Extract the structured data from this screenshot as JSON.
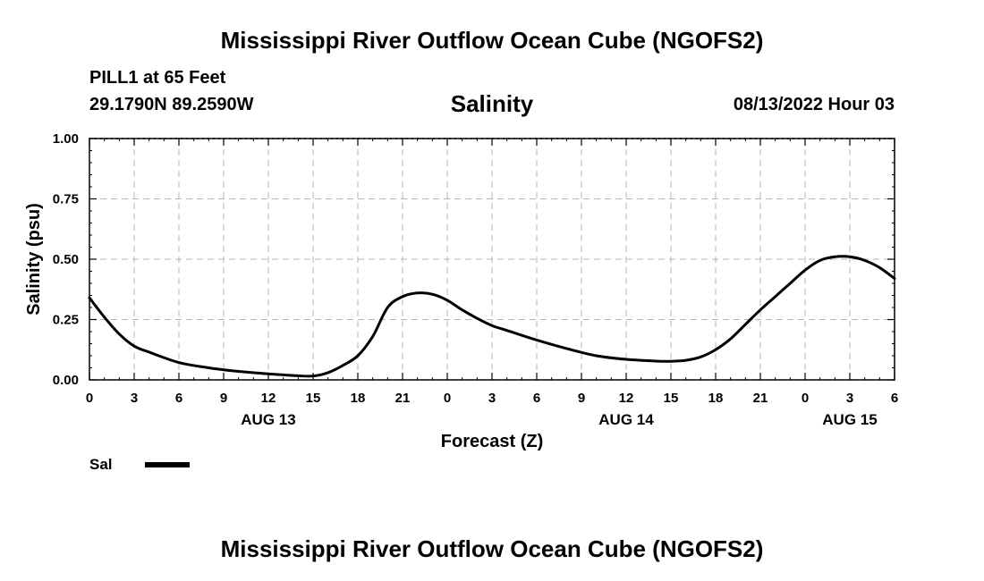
{
  "header": {
    "title": "Mississippi River Outflow Ocean Cube (NGOFS2)",
    "station_name": "PILL1 at 65 Feet",
    "station_coords": "29.1790N  89.2590W",
    "run_time": "08/13/2022 Hour 03"
  },
  "footer": {
    "title": "Mississippi River Outflow Ocean Cube (NGOFS2)"
  },
  "colors": {
    "line": "#000000",
    "grid": "#b4b4b4",
    "background": "#ffffff"
  },
  "chart_data": {
    "type": "line",
    "title": "Salinity",
    "xlabel": "Forecast (Z)",
    "ylabel": "Salinity (psu)",
    "xlim": [
      0,
      54
    ],
    "ylim": [
      0,
      1.0
    ],
    "grid": true,
    "x_unit": "forecast hours since 08/13/2022 00Z",
    "x_ticks": [
      0,
      3,
      6,
      9,
      12,
      15,
      18,
      21,
      24,
      27,
      30,
      33,
      36,
      39,
      42,
      45,
      48,
      51,
      54
    ],
    "x_tick_labels": [
      "0",
      "3",
      "6",
      "9",
      "12",
      "15",
      "18",
      "21",
      "0",
      "3",
      "6",
      "9",
      "12",
      "15",
      "18",
      "21",
      "0",
      "3",
      "6"
    ],
    "y_ticks": [
      0,
      0.25,
      0.5,
      0.75,
      1.0
    ],
    "y_tick_labels": [
      "0.00",
      "0.25",
      "0.50",
      "0.75",
      "1.00"
    ],
    "date_labels": [
      {
        "x": 12,
        "label": "AUG 13"
      },
      {
        "x": 36,
        "label": "AUG 14"
      },
      {
        "x": 51,
        "label": "AUG 15"
      }
    ],
    "legend": {
      "position": "bottom-left",
      "entries": [
        "Sal"
      ]
    },
    "series": [
      {
        "name": "Sal",
        "x": [
          0,
          1,
          2,
          3,
          4,
          6,
          8,
          10,
          12,
          14,
          15,
          16,
          17,
          18,
          19,
          20,
          21,
          22,
          23,
          24,
          25,
          26,
          27,
          28,
          30,
          32,
          34,
          36,
          38,
          39,
          40,
          41,
          42,
          43,
          44,
          45,
          46,
          47,
          48,
          49,
          50,
          51,
          52,
          53,
          54
        ],
        "y": [
          0.34,
          0.26,
          0.19,
          0.14,
          0.115,
          0.072,
          0.05,
          0.035,
          0.025,
          0.017,
          0.016,
          0.03,
          0.06,
          0.1,
          0.18,
          0.3,
          0.345,
          0.36,
          0.355,
          0.33,
          0.29,
          0.255,
          0.225,
          0.205,
          0.165,
          0.13,
          0.1,
          0.085,
          0.078,
          0.077,
          0.081,
          0.095,
          0.125,
          0.17,
          0.23,
          0.29,
          0.345,
          0.4,
          0.455,
          0.495,
          0.51,
          0.51,
          0.495,
          0.465,
          0.42
        ]
      }
    ]
  }
}
